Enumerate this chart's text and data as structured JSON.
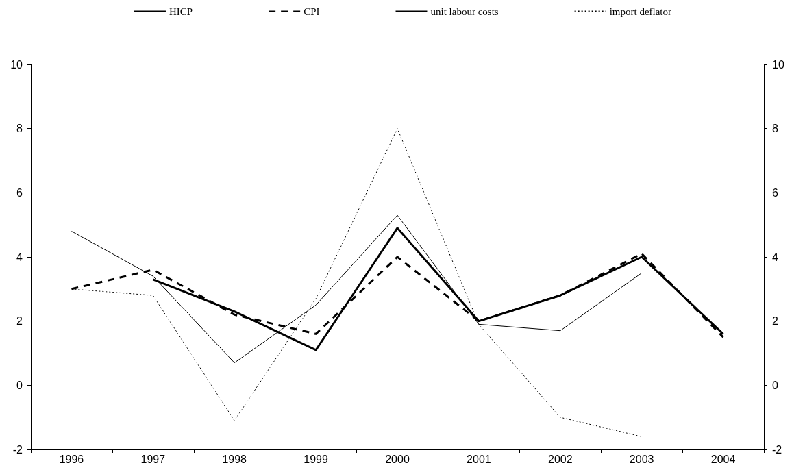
{
  "chart_data": {
    "type": "line",
    "categories": [
      "1996",
      "1997",
      "1998",
      "1999",
      "2000",
      "2001",
      "2002",
      "2003",
      "2004"
    ],
    "series": [
      {
        "name": "HICP",
        "color": "#000000",
        "line_style": "solid",
        "values": [
          null,
          3.3,
          2.3,
          1.1,
          4.9,
          2.0,
          2.8,
          4.0,
          1.6
        ]
      },
      {
        "name": "CPI",
        "color": "#000000",
        "line_style": "dashed",
        "values": [
          3.0,
          3.6,
          2.2,
          1.6,
          4.0,
          2.0,
          2.8,
          4.1,
          1.5
        ]
      },
      {
        "name": "unit labour costs",
        "color": "#000000",
        "line_style": "solid",
        "values": [
          4.8,
          3.4,
          0.7,
          2.5,
          5.3,
          1.9,
          1.7,
          3.5,
          null
        ]
      },
      {
        "name": "import deflator",
        "color": "#000000",
        "line_style": "dotted",
        "values": [
          3.0,
          2.8,
          -1.1,
          2.7,
          8.0,
          1.9,
          -1.0,
          -1.6,
          null
        ]
      }
    ],
    "ylim": [
      -2,
      10
    ],
    "yticks": [
      -2,
      0,
      2,
      4,
      6,
      8,
      10
    ],
    "y2lim": [
      -2,
      10
    ],
    "y2ticks": [
      -2,
      0,
      2,
      4,
      6,
      8,
      10
    ],
    "grid": false,
    "legend": "top",
    "marker": "none"
  }
}
